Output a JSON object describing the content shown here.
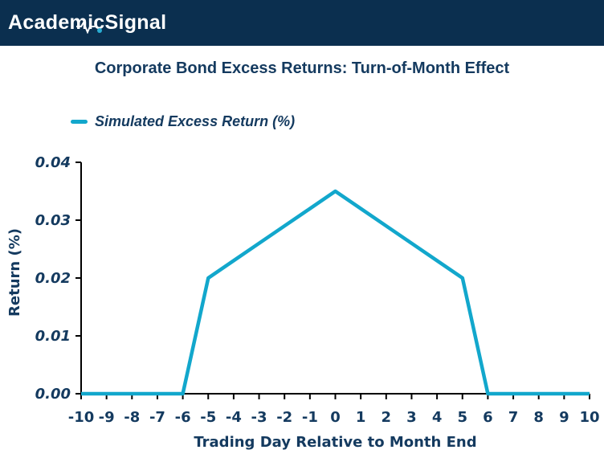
{
  "header": {
    "logo_academic": "Academic",
    "logo_signal": "Signal"
  },
  "title": "Corporate Bond Excess Returns: Turn-of-Month Effect",
  "legend": {
    "label": "Simulated Excess Return (%)"
  },
  "colors": {
    "header_bg": "#0B2F4F",
    "navy": "#143A5F",
    "line": "#12A7CC",
    "axis": "#000000",
    "logo_dot": "#29ADD3"
  },
  "chart_data": {
    "type": "line",
    "title": "Corporate Bond Excess Returns: Turn-of-Month Effect",
    "xlabel": "Trading Day Relative to Month End",
    "ylabel": "Return (%)",
    "legend_entries": [
      "Simulated Excess Return (%)"
    ],
    "legend_position": "top-left",
    "grid": false,
    "x": [
      -10,
      -9,
      -8,
      -7,
      -6,
      -5,
      -4,
      -3,
      -2,
      -1,
      0,
      1,
      2,
      3,
      4,
      5,
      6,
      7,
      8,
      9,
      10
    ],
    "series": [
      {
        "name": "Simulated Excess Return (%)",
        "values": [
          0.0,
          0.0,
          0.0,
          0.0,
          0.0,
          0.02,
          0.023,
          0.026,
          0.029,
          0.032,
          0.035,
          0.032,
          0.029,
          0.026,
          0.023,
          0.02,
          0.0,
          0.0,
          0.0,
          0.0,
          0.0
        ]
      }
    ],
    "xlim": [
      -10,
      10
    ],
    "ylim": [
      0,
      0.04
    ],
    "yticks": [
      0,
      0.01,
      0.02,
      0.03,
      0.04
    ],
    "ytick_labels": [
      "0.00",
      "0.01",
      "0.02",
      "0.03",
      "0.04"
    ]
  }
}
